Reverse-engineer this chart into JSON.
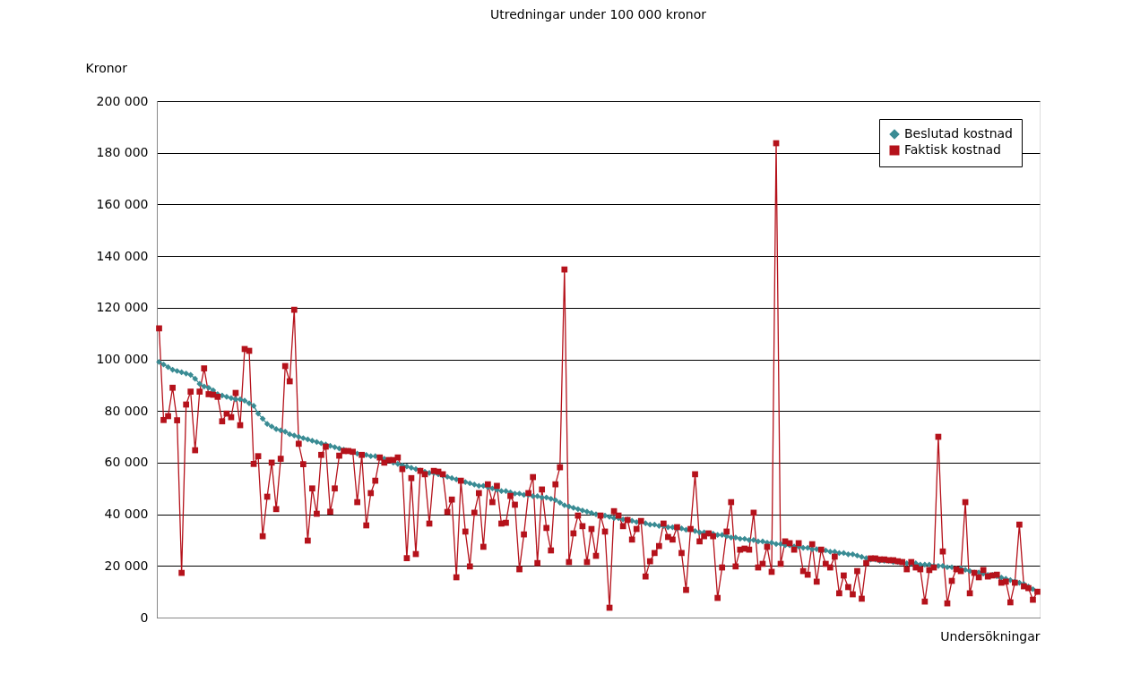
{
  "chart_data": {
    "type": "line",
    "title": "Utredningar under 100 000 kronor",
    "xlabel": "Undersökningar",
    "ylabel": "Kronor",
    "categories": [
      null,
      null,
      null,
      null,
      null,
      null,
      null,
      null,
      null,
      null,
      null,
      null,
      null,
      null,
      null,
      null,
      null,
      null,
      null,
      null,
      null,
      null,
      null,
      null,
      null,
      null,
      null,
      null,
      null,
      null,
      null,
      null,
      null,
      null,
      null,
      null,
      null,
      null,
      null,
      null,
      null,
      null,
      null,
      null,
      null,
      null,
      null,
      null,
      null,
      null,
      null,
      null,
      null,
      null,
      null,
      null,
      null,
      null,
      null,
      null,
      null,
      null,
      null,
      null,
      null,
      null,
      null,
      null,
      null,
      null,
      null,
      null,
      null,
      null,
      null,
      null,
      null,
      null,
      null,
      null,
      null,
      null,
      null,
      null,
      null,
      null,
      null,
      null,
      null,
      null,
      null,
      null,
      null,
      null,
      null,
      null,
      null,
      null,
      null,
      null,
      null,
      null,
      null,
      null,
      null,
      null,
      null,
      null,
      null,
      null,
      null,
      null,
      null,
      null,
      null,
      null,
      null,
      null,
      null,
      null,
      null,
      null,
      null,
      null,
      null,
      null,
      null,
      null,
      null,
      null,
      null,
      null,
      null,
      null,
      null,
      null,
      null,
      null,
      null,
      null,
      null,
      null,
      null,
      null,
      null,
      null,
      null,
      null,
      null,
      null,
      null,
      null,
      null,
      null,
      null,
      null,
      null,
      null,
      null,
      null,
      null,
      null,
      null,
      null,
      null,
      null,
      null,
      null,
      null,
      null,
      null,
      null,
      null,
      null,
      null,
      null,
      null,
      null,
      null,
      null,
      null,
      null,
      null,
      null,
      null,
      null,
      null,
      null,
      null,
      null,
      null,
      null,
      null,
      null,
      null,
      null
    ],
    "series": [
      {
        "name": "Beslutad kostnad",
        "color": "#3a8c94",
        "marker": "diamond",
        "values": [
          99000,
          98000,
          97000,
          96000,
          95500,
          95000,
          94500,
          94000,
          92500,
          90500,
          89500,
          89000,
          88000,
          86500,
          86000,
          85500,
          85000,
          84500,
          84500,
          84000,
          83000,
          82000,
          79000,
          77000,
          75000,
          74000,
          73000,
          72500,
          72000,
          71000,
          70500,
          70000,
          69500,
          69000,
          68500,
          68000,
          67500,
          67000,
          66500,
          66000,
          65500,
          65000,
          64500,
          64000,
          63500,
          63000,
          63000,
          62500,
          62500,
          62000,
          61500,
          61000,
          60000,
          59500,
          59000,
          58500,
          58000,
          57500,
          57000,
          56500,
          56000,
          56000,
          55500,
          55000,
          54500,
          54000,
          53500,
          53000,
          52500,
          52000,
          51500,
          51000,
          51000,
          50500,
          50000,
          49500,
          49000,
          49000,
          48500,
          48000,
          48000,
          47500,
          47500,
          47000,
          47000,
          46500,
          46500,
          46000,
          45500,
          44500,
          43500,
          43000,
          42500,
          42000,
          41500,
          41000,
          40500,
          40000,
          39500,
          39500,
          39000,
          38500,
          38500,
          38000,
          38000,
          37500,
          37000,
          37000,
          36500,
          36000,
          36000,
          35500,
          35500,
          35000,
          35000,
          34500,
          34500,
          34000,
          34000,
          33500,
          33000,
          33000,
          32500,
          32500,
          32000,
          32000,
          31500,
          31000,
          31000,
          30500,
          30500,
          30000,
          30000,
          29500,
          29500,
          29000,
          29000,
          28500,
          28500,
          28000,
          28000,
          27500,
          27500,
          27000,
          27000,
          26500,
          26500,
          26000,
          26000,
          25500,
          25500,
          25000,
          25000,
          24500,
          24500,
          24000,
          23500,
          23000,
          22500,
          22500,
          22000,
          22000,
          22000,
          21500,
          21500,
          21500,
          21000,
          21000,
          21000,
          20500,
          20500,
          20500,
          20000,
          20000,
          20000,
          19500,
          19500,
          19000,
          19000,
          18500,
          18000,
          17500,
          17500,
          17000,
          16500,
          16500,
          16000,
          15500,
          15000,
          14500,
          14000,
          13500,
          13000,
          12000,
          11000,
          10000
        ]
      },
      {
        "name": "Faktisk kostnad",
        "color": "#b5121b",
        "marker": "square",
        "values": [
          112000,
          76500,
          78000,
          89000,
          76400,
          17300,
          82500,
          87500,
          64800,
          87500,
          96500,
          86500,
          86300,
          85500,
          76000,
          79000,
          77600,
          87000,
          74500,
          104000,
          103300,
          59500,
          62500,
          31500,
          46800,
          60000,
          42000,
          61500,
          97400,
          91500,
          119200,
          67300,
          59400,
          29800,
          50000,
          40200,
          63000,
          66200,
          41000,
          50000,
          62700,
          64500,
          64500,
          64200,
          44700,
          63000,
          35700,
          48200,
          53000,
          62000,
          60000,
          61000,
          61000,
          62000,
          57500,
          23000,
          54000,
          24600,
          56800,
          55500,
          36400,
          56800,
          56500,
          55500,
          40900,
          45700,
          15600,
          53000,
          33300,
          19800,
          40600,
          48200,
          27400,
          51600,
          44700,
          51000,
          36400,
          36700,
          47100,
          43700,
          18700,
          32200,
          48200,
          54400,
          21100,
          49600,
          34700,
          26000,
          51600,
          58200,
          134800,
          21500,
          32600,
          39500,
          35400,
          21500,
          34300,
          23900,
          39500,
          33300,
          3800,
          41200,
          39500,
          35400,
          37800,
          30200,
          34300,
          37400,
          15900,
          21800,
          25000,
          27700,
          36400,
          31200,
          30200,
          35000,
          25000,
          10700,
          34300,
          55500,
          29500,
          31500,
          32600,
          31500,
          7600,
          19400,
          33300,
          44700,
          19800,
          26300,
          26700,
          26300,
          40600,
          19400,
          20800,
          27400,
          17700,
          183700,
          20800,
          29500,
          28800,
          26300,
          28800,
          18000,
          16600,
          28400,
          13900,
          26300,
          20800,
          19400,
          23600,
          9400,
          16300,
          11800,
          9000,
          18000,
          7300,
          21100,
          22900,
          22900,
          22500,
          22500,
          22200,
          22200,
          21800,
          21500,
          18700,
          21500,
          19400,
          18700,
          6200,
          18400,
          19400,
          70000,
          25600,
          5500,
          14200,
          18700,
          18000,
          44700,
          9400,
          17300,
          15600,
          18400,
          15900,
          16300,
          16600,
          13500,
          13900,
          5900,
          13500,
          36000,
          12100,
          11400,
          6900,
          10000
        ]
      }
    ],
    "ylim": [
      0,
      200000
    ],
    "yticks": [
      0,
      {
        "value": 20000,
        "label": "20 000"
      },
      {
        "value": 40000,
        "label": "40 000"
      },
      {
        "value": 60000,
        "label": "60 000"
      },
      {
        "value": 80000,
        "label": "80 000"
      },
      {
        "value": 100000,
        "label": "100 000"
      },
      {
        "value": 120000,
        "label": "120 000"
      },
      {
        "value": 140000,
        "label": "140 000"
      },
      {
        "value": 160000,
        "label": "160 000"
      },
      {
        "value": 180000,
        "label": "180 000"
      },
      {
        "value": 200000,
        "label": "200 000"
      }
    ],
    "grid": "y",
    "legend": "top right",
    "tick_labels": "y",
    "line_style": "solid"
  }
}
